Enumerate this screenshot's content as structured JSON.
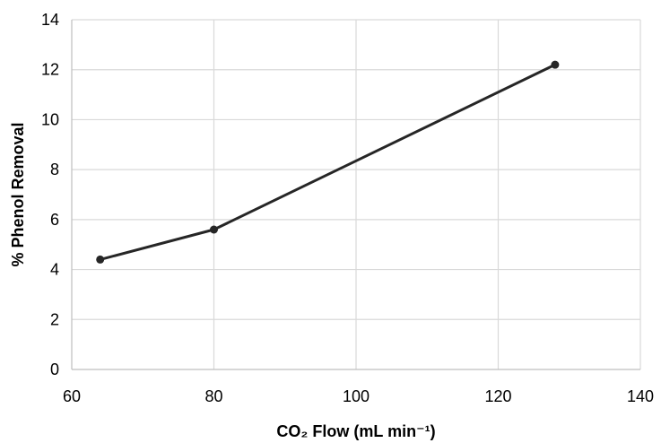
{
  "chart_data": {
    "type": "line",
    "title": "",
    "xlabel": "CO₂ Flow (mL min⁻¹)",
    "ylabel": "% Phenol Removal",
    "xlim": [
      60,
      140
    ],
    "ylim": [
      0,
      14
    ],
    "x_ticks": [
      "60",
      "80",
      "100",
      "120",
      "140"
    ],
    "y_ticks": [
      "0",
      "2",
      "4",
      "6",
      "8",
      "10",
      "12",
      "14"
    ],
    "grid": true,
    "legend": "none",
    "series": [
      {
        "x": [
          64,
          80,
          128
        ],
        "y": [
          4.4,
          5.6,
          12.2
        ],
        "color": "#262626"
      }
    ]
  }
}
